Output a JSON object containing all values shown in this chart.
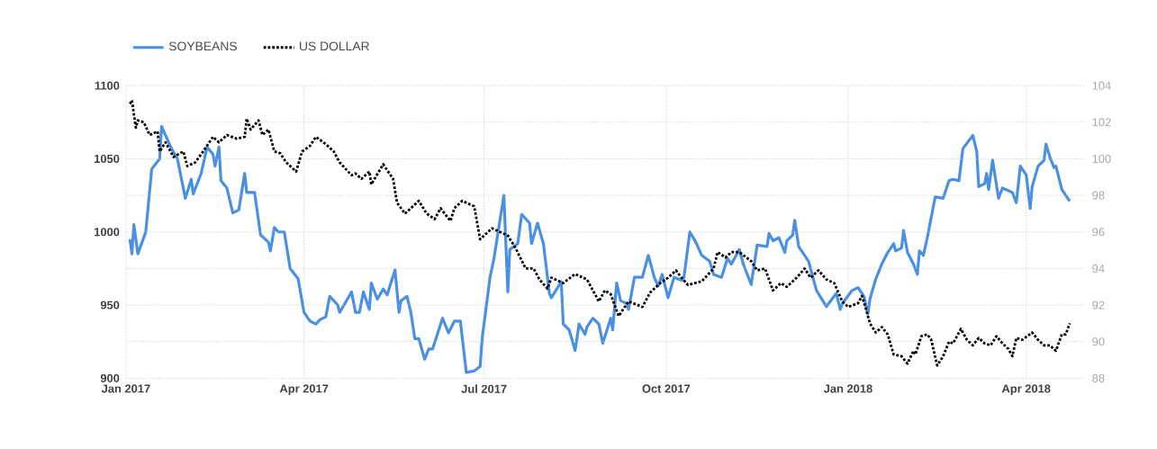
{
  "chart_data": {
    "type": "line",
    "xlim": [
      "2017-01-01",
      "2018-05-01"
    ],
    "xticks": [
      {
        "value": "2017-01-01",
        "label": "Jan 2017"
      },
      {
        "value": "2017-04-01",
        "label": "Apr 2017"
      },
      {
        "value": "2017-07-01",
        "label": "Jul 2017"
      },
      {
        "value": "2017-10-01",
        "label": "Oct 2017"
      },
      {
        "value": "2018-01-01",
        "label": "Jan 2018"
      },
      {
        "value": "2018-04-01",
        "label": "Apr 2018"
      }
    ],
    "ylim": [
      900,
      1100
    ],
    "yticks": [
      900,
      950,
      1000,
      1050,
      1100
    ],
    "y2lim": [
      88,
      104
    ],
    "y2ticks": [
      88,
      90,
      92,
      94,
      96,
      98,
      100,
      102,
      104
    ],
    "grid": true,
    "legend": "top left",
    "marker": "none",
    "series": [
      {
        "name": "SOYBEANS",
        "color": "#4a90e2",
        "line_style": "solid",
        "x": [
          "2017-01-03",
          "2017-01-04",
          "2017-01-05",
          "2017-01-07",
          "2017-01-11",
          "2017-01-14",
          "2017-01-18",
          "2017-01-19",
          "2017-01-24",
          "2017-01-27",
          "2017-01-31",
          "2017-02-03",
          "2017-02-04",
          "2017-02-08",
          "2017-02-11",
          "2017-02-14",
          "2017-02-15",
          "2017-02-17",
          "2017-02-18",
          "2017-02-21",
          "2017-02-24",
          "2017-02-27",
          "2017-03-02",
          "2017-03-03",
          "2017-03-07",
          "2017-03-10",
          "2017-03-14",
          "2017-03-15",
          "2017-03-17",
          "2017-03-19",
          "2017-03-22",
          "2017-03-25",
          "2017-03-29",
          "2017-04-01",
          "2017-04-04",
          "2017-04-07",
          "2017-04-09",
          "2017-04-12",
          "2017-04-14",
          "2017-04-18",
          "2017-04-19",
          "2017-04-25",
          "2017-04-27",
          "2017-04-29",
          "2017-05-01",
          "2017-05-04",
          "2017-05-05",
          "2017-05-08",
          "2017-05-11",
          "2017-05-13",
          "2017-05-17",
          "2017-05-19",
          "2017-05-20",
          "2017-05-23",
          "2017-05-25",
          "2017-05-27",
          "2017-05-29",
          "2017-06-01",
          "2017-06-03",
          "2017-06-05",
          "2017-06-10",
          "2017-06-13",
          "2017-06-16",
          "2017-06-19",
          "2017-06-22",
          "2017-06-26",
          "2017-06-29",
          "2017-06-30",
          "2017-07-04",
          "2017-07-06",
          "2017-07-11",
          "2017-07-13",
          "2017-07-14",
          "2017-07-18",
          "2017-07-20",
          "2017-07-24",
          "2017-07-25",
          "2017-07-28",
          "2017-07-31",
          "2017-08-03",
          "2017-08-04",
          "2017-08-09",
          "2017-08-10",
          "2017-08-13",
          "2017-08-16",
          "2017-08-18",
          "2017-08-21",
          "2017-08-22",
          "2017-08-25",
          "2017-08-28",
          "2017-08-30",
          "2017-09-03",
          "2017-09-04",
          "2017-09-06",
          "2017-09-08",
          "2017-09-11",
          "2017-09-12",
          "2017-09-15",
          "2017-09-19",
          "2017-09-22",
          "2017-09-25",
          "2017-09-27",
          "2017-09-29",
          "2017-10-02",
          "2017-10-05",
          "2017-10-09",
          "2017-10-10",
          "2017-10-13",
          "2017-10-16",
          "2017-10-19",
          "2017-10-23",
          "2017-10-25",
          "2017-10-29",
          "2017-11-01",
          "2017-11-03",
          "2017-11-07",
          "2017-11-09",
          "2017-11-13",
          "2017-11-16",
          "2017-11-21",
          "2017-11-22",
          "2017-11-24",
          "2017-11-27",
          "2017-11-30",
          "2017-12-01",
          "2017-12-04",
          "2017-12-05",
          "2017-12-07",
          "2017-12-12",
          "2017-12-16",
          "2017-12-21",
          "2017-12-26",
          "2017-12-28",
          "2017-12-29",
          "2018-01-03",
          "2018-01-06",
          "2018-01-09",
          "2018-01-11",
          "2018-01-12",
          "2018-01-15",
          "2018-01-18",
          "2018-01-21",
          "2018-01-24",
          "2018-01-25",
          "2018-01-28",
          "2018-01-29",
          "2018-01-31",
          "2018-02-03",
          "2018-02-05",
          "2018-02-06",
          "2018-02-08",
          "2018-02-10",
          "2018-02-14",
          "2018-02-18",
          "2018-02-21",
          "2018-02-23",
          "2018-02-26",
          "2018-02-28",
          "2018-03-05",
          "2018-03-07",
          "2018-03-08",
          "2018-03-11",
          "2018-03-12",
          "2018-03-13",
          "2018-03-15",
          "2018-03-18",
          "2018-03-20",
          "2018-03-25",
          "2018-03-27",
          "2018-03-29",
          "2018-04-01",
          "2018-04-03",
          "2018-04-04",
          "2018-04-07",
          "2018-04-10",
          "2018-04-11",
          "2018-04-13",
          "2018-04-15",
          "2018-04-16",
          "2018-04-19",
          "2018-04-23"
        ],
        "values": [
          995,
          985,
          1005,
          985,
          1000,
          1043,
          1050,
          1072,
          1057,
          1050,
          1023,
          1036,
          1026,
          1040,
          1058,
          1053,
          1045,
          1058,
          1035,
          1030,
          1013,
          1015,
          1040,
          1027,
          1027,
          998,
          993,
          987,
          1003,
          1000,
          1000,
          975,
          968,
          945,
          939,
          937,
          940,
          942,
          956,
          950,
          945,
          959,
          945,
          945,
          959,
          947,
          965,
          954,
          961,
          957,
          974,
          945,
          953,
          956,
          945,
          927,
          927,
          913,
          920,
          920,
          941,
          931,
          939,
          939,
          904,
          905,
          908,
          927,
          969,
          982,
          1025,
          959,
          988,
          992,
          1012,
          1006,
          992,
          1006,
          992,
          958,
          955,
          966,
          937,
          933,
          919,
          937,
          930,
          935,
          941,
          937,
          924,
          941,
          933,
          965,
          953,
          951,
          947,
          969,
          969,
          984,
          969,
          963,
          971,
          955,
          969,
          967,
          969,
          1000,
          993,
          984,
          980,
          971,
          969,
          982,
          978,
          988,
          978,
          964,
          991,
          990,
          999,
          994,
          996,
          986,
          994,
          998,
          1008,
          990,
          980,
          960,
          949,
          958,
          947,
          951,
          960,
          962,
          956,
          944,
          954,
          968,
          978,
          986,
          992,
          987,
          989,
          1001,
          986,
          978,
          971,
          987,
          984,
          996,
          1024,
          1023,
          1035,
          1036,
          1035,
          1057,
          1066,
          1055,
          1031,
          1033,
          1040,
          1029,
          1049,
          1023,
          1030,
          1027,
          1020,
          1045,
          1039,
          1016,
          1031,
          1045,
          1049,
          1060,
          1051,
          1044,
          1045,
          1029,
          1021
        ]
      },
      {
        "name": "US DOLLAR",
        "color": "#000000",
        "line_style": "dotted",
        "axis": "y2",
        "x": [
          "2017-01-03",
          "2017-01-04",
          "2017-01-06",
          "2017-01-07",
          "2017-01-10",
          "2017-01-13",
          "2017-01-17",
          "2017-01-18",
          "2017-01-21",
          "2017-01-25",
          "2017-01-30",
          "2017-02-01",
          "2017-02-05",
          "2017-02-09",
          "2017-02-14",
          "2017-02-17",
          "2017-02-21",
          "2017-02-26",
          "2017-03-02",
          "2017-03-03",
          "2017-03-05",
          "2017-03-09",
          "2017-03-11",
          "2017-03-14",
          "2017-03-17",
          "2017-03-20",
          "2017-03-23",
          "2017-03-28",
          "2017-03-31",
          "2017-04-04",
          "2017-04-07",
          "2017-04-12",
          "2017-04-16",
          "2017-04-19",
          "2017-04-25",
          "2017-04-27",
          "2017-04-30",
          "2017-05-04",
          "2017-05-05",
          "2017-05-11",
          "2017-05-16",
          "2017-05-18",
          "2017-05-22",
          "2017-05-25",
          "2017-05-29",
          "2017-06-02",
          "2017-06-06",
          "2017-06-09",
          "2017-06-14",
          "2017-06-16",
          "2017-06-20",
          "2017-06-26",
          "2017-06-29",
          "2017-07-05",
          "2017-07-13",
          "2017-07-17",
          "2017-07-22",
          "2017-07-26",
          "2017-07-29",
          "2017-08-02",
          "2017-08-04",
          "2017-08-10",
          "2017-08-16",
          "2017-08-22",
          "2017-08-28",
          "2017-08-31",
          "2017-09-03",
          "2017-09-07",
          "2017-09-12",
          "2017-09-19",
          "2017-09-23",
          "2017-09-28",
          "2017-10-02",
          "2017-10-06",
          "2017-10-08",
          "2017-10-12",
          "2017-10-19",
          "2017-10-25",
          "2017-10-27",
          "2017-10-31",
          "2017-11-03",
          "2017-11-07",
          "2017-11-13",
          "2017-11-16",
          "2017-11-20",
          "2017-11-24",
          "2017-11-28",
          "2017-12-01",
          "2017-12-06",
          "2017-12-10",
          "2017-12-13",
          "2017-12-17",
          "2017-12-21",
          "2017-12-25",
          "2017-12-29",
          "2018-01-01",
          "2018-01-06",
          "2018-01-08",
          "2018-01-10",
          "2018-01-12",
          "2018-01-15",
          "2018-01-18",
          "2018-01-21",
          "2018-01-24",
          "2018-01-28",
          "2018-01-31",
          "2018-02-03",
          "2018-02-04",
          "2018-02-07",
          "2018-02-10",
          "2018-02-12",
          "2018-02-15",
          "2018-02-18",
          "2018-02-21",
          "2018-02-23",
          "2018-02-27",
          "2018-03-02",
          "2018-03-05",
          "2018-03-08",
          "2018-03-11",
          "2018-03-14",
          "2018-03-17",
          "2018-03-20",
          "2018-03-23",
          "2018-03-25",
          "2018-03-27",
          "2018-03-30",
          "2018-04-04",
          "2018-04-07",
          "2018-04-10",
          "2018-04-13",
          "2018-04-16",
          "2018-04-19",
          "2018-04-21",
          "2018-04-23"
        ],
        "values": [
          103.0,
          103.2,
          101.7,
          102.1,
          102.0,
          101.3,
          101.5,
          100.4,
          100.9,
          100.1,
          100.4,
          99.6,
          99.8,
          100.4,
          101.2,
          100.9,
          101.3,
          101.1,
          101.2,
          102.2,
          101.6,
          102.1,
          101.3,
          101.6,
          100.4,
          100.3,
          99.8,
          99.3,
          100.4,
          100.7,
          101.2,
          100.8,
          100.4,
          99.8,
          99.1,
          99.2,
          98.9,
          99.3,
          98.6,
          99.7,
          98.9,
          97.6,
          97.0,
          97.3,
          97.7,
          97.0,
          96.7,
          97.3,
          96.6,
          97.3,
          97.7,
          97.4,
          95.6,
          96.2,
          95.8,
          95.1,
          94.0,
          94.0,
          93.4,
          92.9,
          93.5,
          93.2,
          93.7,
          93.4,
          92.2,
          92.8,
          92.6,
          91.4,
          92.2,
          91.9,
          92.7,
          93.2,
          93.5,
          93.9,
          93.6,
          93.1,
          93.3,
          94.0,
          94.9,
          94.6,
          94.9,
          94.9,
          94.4,
          93.9,
          94.0,
          92.8,
          93.2,
          93.0,
          93.5,
          94.0,
          93.5,
          93.9,
          93.4,
          93.2,
          92.2,
          91.9,
          92.1,
          92.5,
          91.8,
          91.0,
          90.5,
          90.8,
          90.4,
          89.3,
          89.2,
          88.8,
          89.5,
          89.3,
          90.3,
          90.4,
          90.1,
          88.7,
          89.2,
          90.0,
          89.9,
          90.7,
          90.1,
          89.8,
          90.2,
          89.9,
          89.8,
          90.3,
          89.9,
          89.6,
          89.2,
          90.2,
          90.1,
          90.5,
          90.1,
          89.8,
          89.8,
          89.5,
          90.4,
          90.4,
          91.0
        ]
      }
    ]
  }
}
